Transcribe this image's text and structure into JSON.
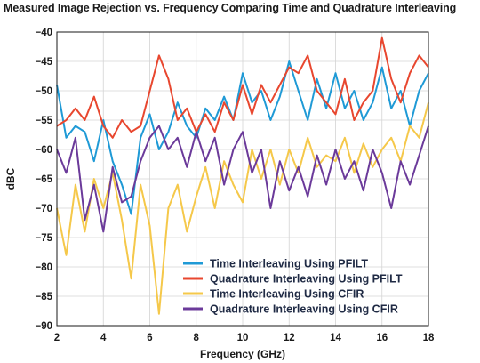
{
  "chart_data": {
    "type": "line",
    "title": "Measured Image Rejection vs. Frequency Comparing Time and Quadrature Interleaving",
    "xlabel": "Frequency (GHz)",
    "ylabel": "dBC",
    "xlim": [
      2,
      18
    ],
    "ylim": [
      -90,
      -40
    ],
    "xticks": [
      2,
      4,
      6,
      8,
      10,
      12,
      14,
      16,
      18
    ],
    "yticks": [
      -40,
      -45,
      -50,
      -55,
      -60,
      -65,
      -70,
      -75,
      -80,
      -85,
      -90
    ],
    "grid": true,
    "legend_position": "bottom-right",
    "series": [
      {
        "name": "Time Interleaving Using PFILT",
        "color": "#1f9ad6",
        "x": [
          2,
          2.4,
          2.8,
          3.2,
          3.6,
          4,
          4.4,
          4.8,
          5.2,
          5.6,
          6,
          6.4,
          6.8,
          7.2,
          7.6,
          8,
          8.4,
          8.8,
          9.2,
          9.6,
          10,
          10.4,
          10.8,
          11.2,
          11.6,
          12,
          12.4,
          12.8,
          13.2,
          13.6,
          14,
          14.4,
          14.8,
          15.2,
          15.6,
          16,
          16.4,
          16.8,
          17.2,
          17.6,
          18
        ],
        "values": [
          -49,
          -58,
          -56,
          -57,
          -62,
          -55,
          -62,
          -66,
          -71,
          -58,
          -54,
          -60,
          -57,
          -52,
          -56,
          -58,
          -53,
          -55,
          -51,
          -55,
          -47,
          -52,
          -50,
          -55,
          -51,
          -45,
          -50,
          -55,
          -48,
          -53,
          -47,
          -53,
          -50,
          -55,
          -52,
          -46,
          -53,
          -50,
          -56,
          -50,
          -47
        ]
      },
      {
        "name": "Quadrature Interleaving Using PFILT",
        "color": "#e8472f",
        "x": [
          2,
          2.4,
          2.8,
          3.2,
          3.6,
          4,
          4.4,
          4.8,
          5.2,
          5.6,
          6,
          6.4,
          6.8,
          7.2,
          7.6,
          8,
          8.4,
          8.8,
          9.2,
          9.6,
          10,
          10.4,
          10.8,
          11.2,
          11.6,
          12,
          12.4,
          12.8,
          13.2,
          13.6,
          14,
          14.4,
          14.8,
          15.2,
          15.6,
          16,
          16.4,
          16.8,
          17.2,
          17.6,
          18
        ],
        "values": [
          -56,
          -55,
          -53,
          -55,
          -51,
          -56,
          -58,
          -55,
          -57,
          -56,
          -50,
          -44,
          -48,
          -55,
          -53,
          -57,
          -54,
          -57,
          -52,
          -55,
          -49,
          -54,
          -49,
          -52,
          -49,
          -46,
          -47,
          -44,
          -50,
          -52,
          -54,
          -48,
          -55,
          -52,
          -50,
          -41,
          -48,
          -52,
          -47,
          -44,
          -46
        ]
      },
      {
        "name": "Time Interleaving Using CFIR",
        "color": "#f5c84a",
        "x": [
          2,
          2.4,
          2.8,
          3.2,
          3.6,
          4,
          4.4,
          4.8,
          5.2,
          5.6,
          6,
          6.4,
          6.8,
          7.2,
          7.6,
          8,
          8.4,
          8.8,
          9.2,
          9.6,
          10,
          10.4,
          10.8,
          11.2,
          11.6,
          12,
          12.4,
          12.8,
          13.2,
          13.6,
          14,
          14.4,
          14.8,
          15.2,
          15.6,
          16,
          16.4,
          16.8,
          17.2,
          17.6,
          18
        ],
        "values": [
          -70,
          -78,
          -66,
          -74,
          -65,
          -70,
          -64,
          -72,
          -82,
          -66,
          -73,
          -88,
          -70,
          -66,
          -74,
          -68,
          -63,
          -70,
          -62,
          -66,
          -69,
          -60,
          -65,
          -60,
          -66,
          -60,
          -64,
          -58,
          -63,
          -61,
          -62,
          -58,
          -64,
          -59,
          -63,
          -60,
          -58,
          -62,
          -56,
          -58,
          -52
        ]
      },
      {
        "name": "Quadrature Interleaving Using CFIR",
        "color": "#6b3a9a",
        "x": [
          2,
          2.4,
          2.8,
          3.2,
          3.6,
          4,
          4.4,
          4.8,
          5.2,
          5.6,
          6,
          6.4,
          6.8,
          7.2,
          7.6,
          8,
          8.4,
          8.8,
          9.2,
          9.6,
          10,
          10.4,
          10.8,
          11.2,
          11.6,
          12,
          12.4,
          12.8,
          13.2,
          13.6,
          14,
          14.4,
          14.8,
          15.2,
          15.6,
          16,
          16.4,
          16.8,
          17.2,
          17.6,
          18
        ],
        "values": [
          -60,
          -64,
          -58,
          -72,
          -66,
          -74,
          -63,
          -69,
          -68,
          -62,
          -58,
          -56,
          -60,
          -58,
          -63,
          -57,
          -62,
          -58,
          -66,
          -60,
          -57,
          -64,
          -60,
          -70,
          -62,
          -67,
          -63,
          -68,
          -61,
          -66,
          -60,
          -65,
          -62,
          -67,
          -60,
          -64,
          -70,
          -62,
          -66,
          -61,
          -56
        ]
      }
    ]
  }
}
